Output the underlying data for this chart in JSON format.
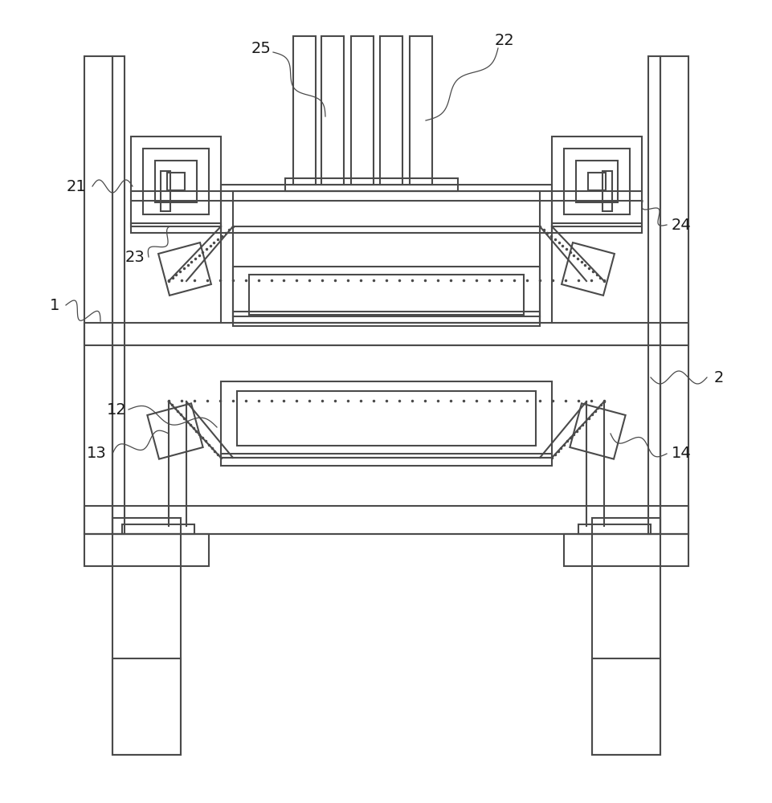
{
  "bg_color": "#ffffff",
  "line_color": "#4a4a4a",
  "line_width": 1.5,
  "fig_width": 9.62,
  "fig_height": 10.0
}
